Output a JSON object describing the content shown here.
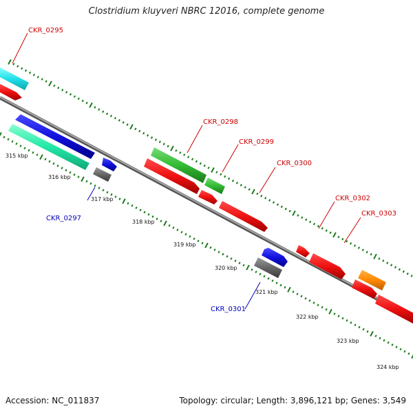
{
  "title": "Clostridium kluyveri NBRC 12016, complete genome",
  "footer": {
    "accession": "Accession: NC_011837",
    "summary": "Topology: circular; Length: 3,896,121 bp; Genes: 3,549"
  },
  "ticks": [
    "315 kbp",
    "316 kbp",
    "317 kbp",
    "318 kbp",
    "319 kbp",
    "320 kbp",
    "321 kbp",
    "322 kbp",
    "323 kbp",
    "324 kbp"
  ],
  "labels": [
    {
      "text": "CKR_0295",
      "color": "#cc0000"
    },
    {
      "text": "CKR_0297",
      "color": "#0000bb"
    },
    {
      "text": "CKR_0298",
      "color": "#cc0000"
    },
    {
      "text": "CKR_0299",
      "color": "#cc0000"
    },
    {
      "text": "CKR_0300",
      "color": "#cc0000"
    },
    {
      "text": "CKR_0301",
      "color": "#0000bb"
    },
    {
      "text": "CKR_0302",
      "color": "#cc0000"
    },
    {
      "text": "CKR_0303",
      "color": "#cc0000"
    }
  ],
  "colors": {
    "backbone": "#8c8c8c",
    "tick_marks": "#1a7a1a",
    "cds_red": "#ee1111",
    "cds_blue": "#1111dd",
    "cds_gray": "#666666",
    "cds_cyan": "#22e0e8",
    "cds_teal": "#22e8a8",
    "cds_green": "#33bb33",
    "cds_orange": "#ff8800"
  }
}
